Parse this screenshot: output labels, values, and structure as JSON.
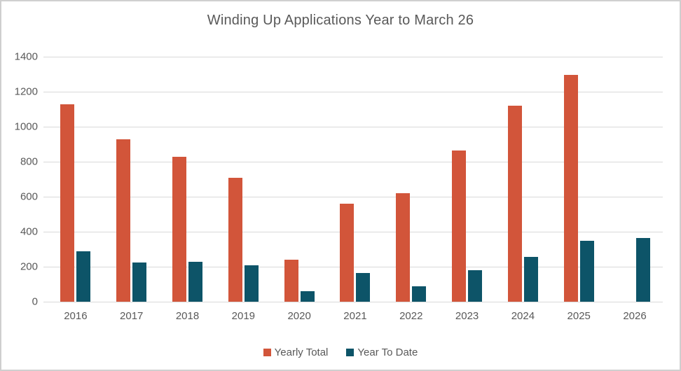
{
  "title": "Winding Up Applications Year to March 26",
  "colors": {
    "yearly_total": "#d2553a",
    "year_to_date": "#0d5468",
    "gridline": "#d9d9d9",
    "text": "#595959",
    "border": "#cfcfcf"
  },
  "chart_data": {
    "type": "bar",
    "title": "Winding Up Applications Year to March 26",
    "categories": [
      "2016",
      "2017",
      "2018",
      "2019",
      "2020",
      "2021",
      "2022",
      "2023",
      "2024",
      "2025",
      "2026"
    ],
    "series": [
      {
        "name": "Yearly Total",
        "color": "#d2553a",
        "values": [
          1130,
          930,
          830,
          710,
          240,
          560,
          620,
          865,
          1120,
          1295,
          null
        ]
      },
      {
        "name": "Year To Date",
        "color": "#0d5468",
        "values": [
          290,
          225,
          230,
          210,
          60,
          165,
          90,
          180,
          255,
          350,
          365
        ]
      }
    ],
    "xlabel": "",
    "ylabel": "",
    "ylim": [
      0,
      1400
    ],
    "ytick_step": 200,
    "grid": true,
    "legend_position": "bottom"
  },
  "legend": {
    "items": [
      {
        "label": "Yearly Total",
        "color": "#d2553a"
      },
      {
        "label": "Year To Date",
        "color": "#0d5468"
      }
    ]
  }
}
